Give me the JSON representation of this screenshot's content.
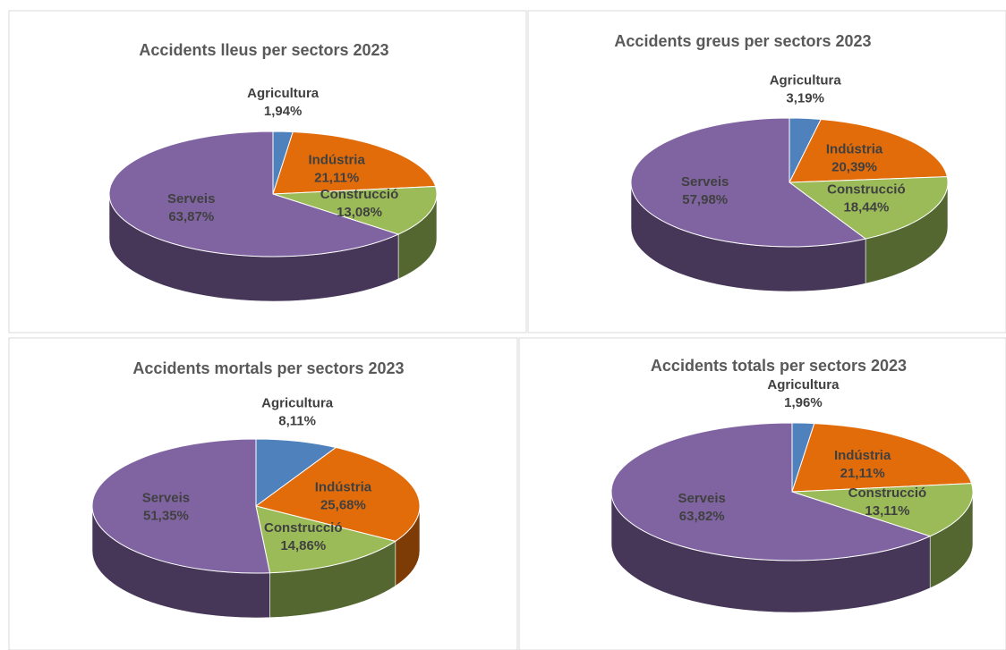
{
  "chart_data": [
    {
      "type": "pie",
      "title": "Accidents lleus per sectors 2023",
      "categories": [
        "Agricultura",
        "Indústria",
        "Construcció",
        "Serveis"
      ],
      "values": [
        1.94,
        21.11,
        13.08,
        63.87
      ],
      "value_labels": [
        "1,94%",
        "21,11%",
        "13,08%",
        "63,87%"
      ],
      "colors": [
        "#4f81bd",
        "#e36c0a",
        "#9bbb59",
        "#8064a2"
      ]
    },
    {
      "type": "pie",
      "title": "Accidents greus per sectors 2023",
      "categories": [
        "Agricultura",
        "Indústria",
        "Construcció",
        "Serveis"
      ],
      "values": [
        3.19,
        20.39,
        18.44,
        57.98
      ],
      "value_labels": [
        "3,19%",
        "20,39%",
        "18,44%",
        "57,98%"
      ],
      "colors": [
        "#4f81bd",
        "#e36c0a",
        "#9bbb59",
        "#8064a2"
      ]
    },
    {
      "type": "pie",
      "title": "Accidents mortals per sectors 2023",
      "categories": [
        "Agricultura",
        "Indústria",
        "Construcció",
        "Serveis"
      ],
      "values": [
        8.11,
        25.68,
        14.86,
        51.35
      ],
      "value_labels": [
        "8,11%",
        "25,68%",
        "14,86%",
        "51,35%"
      ],
      "colors": [
        "#4f81bd",
        "#e36c0a",
        "#9bbb59",
        "#8064a2"
      ]
    },
    {
      "type": "pie",
      "title": "Accidents totals per sectors 2023",
      "categories": [
        "Agricultura",
        "Indústria",
        "Construcció",
        "Serveis"
      ],
      "values": [
        1.96,
        21.11,
        13.11,
        63.82
      ],
      "value_labels": [
        "1,96%",
        "21,11%",
        "13,11%",
        "63,82%"
      ],
      "colors": [
        "#4f81bd",
        "#e36c0a",
        "#9bbb59",
        "#8064a2"
      ]
    }
  ]
}
